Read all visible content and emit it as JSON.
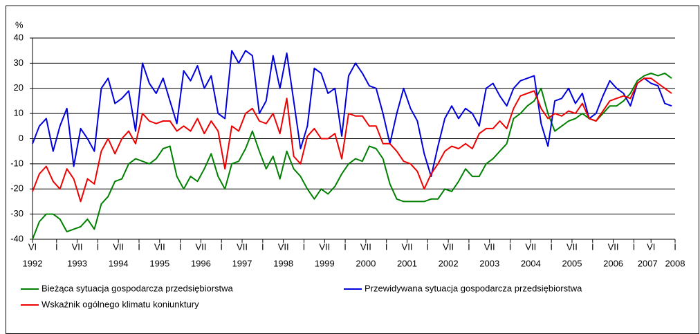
{
  "chart_data": {
    "type": "line",
    "y_unit": "%",
    "x": [
      5,
      7,
      9,
      11,
      13,
      15,
      17,
      19,
      21,
      23,
      25,
      27,
      29,
      31,
      33,
      35,
      37,
      39,
      41,
      43,
      45,
      47,
      49,
      51,
      53,
      55,
      57,
      59,
      61,
      63,
      65,
      67,
      69,
      71,
      73,
      75,
      77,
      79,
      81,
      83,
      85,
      87,
      89,
      91,
      93,
      95,
      97,
      99,
      101,
      103,
      105,
      107,
      109,
      111,
      113,
      115,
      117,
      119,
      121,
      123,
      125,
      127,
      129,
      131,
      133,
      135,
      137,
      139,
      141,
      143,
      145,
      147,
      149,
      151,
      153,
      155,
      157,
      159,
      161,
      163,
      165,
      167,
      169,
      171,
      173,
      175,
      177,
      179,
      181,
      183,
      185,
      187,
      189,
      191
    ],
    "series": [
      {
        "name": "Bieżąca sytuacja gospodarcza przedsiębiorstwa",
        "color": "#008000",
        "values": [
          -40,
          -33,
          -30,
          -30,
          -32,
          -37,
          -36,
          -35,
          -32,
          -36,
          -26,
          -23,
          -17,
          -16,
          -10,
          -8,
          -9,
          -10,
          -8,
          -4,
          -3,
          -15,
          -20,
          -15,
          -17,
          -12,
          -6,
          -15,
          -20,
          -10,
          -9,
          -4,
          3,
          -5,
          -12,
          -7,
          -16,
          -5,
          -12,
          -15,
          -20,
          -24,
          -20,
          -22,
          -19,
          -14,
          -10,
          -8,
          -9,
          -3,
          -4,
          -8,
          -18,
          -24,
          -25,
          -25,
          -25,
          -25,
          -24,
          -24,
          -20,
          -21,
          -17,
          -12,
          -15,
          -15,
          -10,
          -8,
          -5,
          -2,
          8,
          10,
          13,
          15,
          20,
          10,
          3,
          5,
          7,
          8,
          10,
          8,
          7,
          10,
          13,
          13,
          15,
          18,
          23,
          25,
          26,
          25,
          26,
          24
        ]
      },
      {
        "name": "Przewidywana sytuacja gospodarcza przedsiębiorstwa",
        "color": "#0000dd",
        "values": [
          -2,
          5,
          8,
          -5,
          5,
          12,
          -11,
          4,
          0,
          -5,
          20,
          24,
          14,
          16,
          19,
          3,
          30,
          22,
          18,
          24,
          15,
          6,
          27,
          23,
          29,
          20,
          25,
          10,
          8,
          35,
          30,
          35,
          33,
          10,
          15,
          33,
          20,
          34,
          15,
          -4,
          5,
          28,
          26,
          18,
          20,
          1,
          25,
          30,
          26,
          21,
          20,
          10,
          -2,
          10,
          20,
          12,
          7,
          -6,
          -15,
          -3,
          8,
          13,
          8,
          12,
          10,
          5,
          20,
          22,
          17,
          13,
          20,
          23,
          24,
          25,
          6,
          -3,
          15,
          16,
          20,
          14,
          18,
          8,
          10,
          17,
          23,
          20,
          18,
          13,
          22,
          24,
          22,
          21,
          14,
          13
        ]
      },
      {
        "name": "Wskaźnik ogólnego klimatu koniunktury",
        "color": "#ee0000",
        "values": [
          -21,
          -14,
          -11,
          -17,
          -20,
          -12,
          -16,
          -25,
          -16,
          -18,
          -5,
          0,
          -6,
          0,
          3,
          -2,
          10,
          7,
          6,
          7,
          7,
          3,
          5,
          3,
          8,
          2,
          7,
          3,
          -12,
          5,
          3,
          10,
          12,
          7,
          6,
          10,
          2,
          16,
          -7,
          -10,
          1,
          4,
          0,
          0,
          2,
          -8,
          10,
          9,
          9,
          5,
          5,
          -2,
          -2,
          -5,
          -9,
          -10,
          -13,
          -20,
          -14,
          -10,
          -5,
          -3,
          -4,
          -2,
          -4,
          2,
          4,
          4,
          7,
          4,
          12,
          17,
          18,
          19,
          12,
          8,
          10,
          9,
          11,
          10,
          14,
          8,
          7,
          11,
          15,
          16,
          17,
          16,
          22,
          24,
          24,
          22,
          20,
          18
        ]
      }
    ],
    "xlim": [
      5,
      192
    ],
    "xticks": [
      {
        "value": 5,
        "label": "VI"
      },
      {
        "value": 12,
        "label": "I"
      },
      {
        "value": 18,
        "label": "VII"
      },
      {
        "value": 24,
        "label": "I"
      },
      {
        "value": 30,
        "label": "VII"
      },
      {
        "value": 36,
        "label": "I"
      },
      {
        "value": 42,
        "label": "VII"
      },
      {
        "value": 48,
        "label": "I"
      },
      {
        "value": 54,
        "label": "VII"
      },
      {
        "value": 60,
        "label": "I"
      },
      {
        "value": 66,
        "label": "VII"
      },
      {
        "value": 72,
        "label": "I"
      },
      {
        "value": 78,
        "label": "VII"
      },
      {
        "value": 84,
        "label": "I"
      },
      {
        "value": 90,
        "label": "VII"
      },
      {
        "value": 96,
        "label": "I"
      },
      {
        "value": 102,
        "label": "VII"
      },
      {
        "value": 108,
        "label": "I"
      },
      {
        "value": 114,
        "label": "VII"
      },
      {
        "value": 120,
        "label": "I"
      },
      {
        "value": 126,
        "label": "VII"
      },
      {
        "value": 132,
        "label": "I"
      },
      {
        "value": 138,
        "label": "VII"
      },
      {
        "value": 144,
        "label": "I"
      },
      {
        "value": 150,
        "label": "VII"
      },
      {
        "value": 156,
        "label": "I"
      },
      {
        "value": 162,
        "label": "VII"
      },
      {
        "value": 168,
        "label": "I"
      },
      {
        "value": 174,
        "label": "VII"
      },
      {
        "value": 180,
        "label": "I"
      },
      {
        "value": 185,
        "label": "VI"
      },
      {
        "value": 192,
        "label": "I"
      }
    ],
    "year_labels": [
      {
        "value": 5,
        "label": "1992"
      },
      {
        "value": 18,
        "label": "1993"
      },
      {
        "value": 30,
        "label": "1994"
      },
      {
        "value": 42,
        "label": "1995"
      },
      {
        "value": 54,
        "label": "1996"
      },
      {
        "value": 66,
        "label": "1997"
      },
      {
        "value": 78,
        "label": "1998"
      },
      {
        "value": 90,
        "label": "1999"
      },
      {
        "value": 102,
        "label": "2000"
      },
      {
        "value": 114,
        "label": "2001"
      },
      {
        "value": 126,
        "label": "2002"
      },
      {
        "value": 138,
        "label": "2003"
      },
      {
        "value": 150,
        "label": "2004"
      },
      {
        "value": 162,
        "label": "2005"
      },
      {
        "value": 174,
        "label": "2006"
      },
      {
        "value": 184,
        "label": "2007"
      },
      {
        "value": 192,
        "label": "2008"
      }
    ],
    "ylim": [
      -40,
      40
    ],
    "yticks": [
      -40,
      -30,
      -20,
      -10,
      0,
      10,
      20,
      30,
      40
    ],
    "grid": true
  }
}
